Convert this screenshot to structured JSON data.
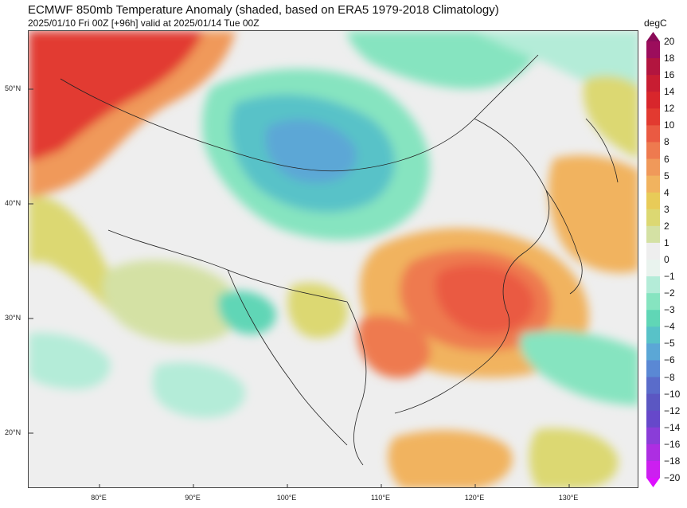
{
  "header": {
    "title": "ECMWF 850mb Temperature Anomaly (shaded, based on ERA5 1979-2018 Climatology)",
    "subtitle": "2025/01/10 Fri 00Z [+96h] valid at 2025/01/14 Tue 00Z"
  },
  "map": {
    "lat_labels": [
      "50°N",
      "40°N",
      "30°N",
      "20°N"
    ],
    "lon_labels": [
      "80°E",
      "90°E",
      "100°E",
      "110°E",
      "120°E",
      "130°E"
    ]
  },
  "colorbar": {
    "unit": "degC",
    "levels": [
      "20",
      "18",
      "16",
      "14",
      "12",
      "10",
      "8",
      "6",
      "5",
      "4",
      "3",
      "2",
      "1",
      "0",
      "−1",
      "−2",
      "−3",
      "−4",
      "−5",
      "−6",
      "−8",
      "−10",
      "−12",
      "−14",
      "−16",
      "−18",
      "−20"
    ],
    "colors": [
      "#9c0d5c",
      "#b2153f",
      "#c81d32",
      "#d8262c",
      "#e23a30",
      "#ea5a42",
      "#ee7a4f",
      "#f0995a",
      "#f1b35f",
      "#e8cb58",
      "#dcd872",
      "#d4e1a4",
      "#eeeeee",
      "#e9f3ee",
      "#b4ecd8",
      "#86e4c0",
      "#60d6b6",
      "#58c2c8",
      "#5ba7d6",
      "#5a88d4",
      "#5a6cca",
      "#5b57c2",
      "#6648ca",
      "#8a3dd8",
      "#ad2ee2",
      "#cc1ff0"
    ],
    "top_color": "#8a0b58",
    "bottom_color": "#dd10ff"
  }
}
